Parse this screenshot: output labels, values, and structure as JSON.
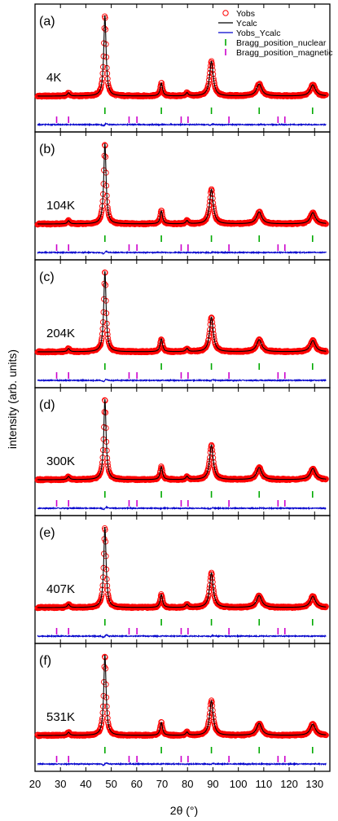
{
  "chart_data": {
    "type": "line",
    "title": "",
    "xlabel": "2θ (°)",
    "ylabel": "intensity (arb. units)",
    "xlim": [
      20,
      136
    ],
    "xticks": [
      20,
      30,
      40,
      50,
      60,
      70,
      80,
      90,
      100,
      110,
      120,
      130
    ],
    "legend": {
      "placement": "top-right",
      "entries": [
        "Yobs",
        "Ycalc",
        "Yobs_Ycalc",
        "Bragg_position_nuclear",
        "Bragg_position_magnetic"
      ]
    },
    "colors": {
      "Yobs": "#ff0000",
      "Ycalc": "#000000",
      "Yobs_Ycalc": "#0000cc",
      "Bragg_position_nuclear": "#00aa00",
      "Bragg_position_magnetic": "#cc00cc"
    },
    "bragg_positions_nuclear": [
      47.5,
      69.7,
      89.4,
      108.2,
      129.2
    ],
    "bragg_positions_magnetic": [
      28.5,
      33.2,
      57.0,
      60.1,
      77.5,
      80.2,
      96.3,
      115.6,
      118.3
    ],
    "panels": [
      {
        "letter": "(a)",
        "temperature": "4K",
        "shows_magnetic": true,
        "peaks": [
          [
            33.2,
            0.04
          ],
          [
            47.5,
            1.0
          ],
          [
            69.7,
            0.16
          ],
          [
            79.8,
            0.04
          ],
          [
            89.4,
            0.43
          ],
          [
            108.2,
            0.15
          ],
          [
            129.3,
            0.14
          ]
        ]
      },
      {
        "letter": "(b)",
        "temperature": "104K",
        "shows_magnetic": true,
        "peaks": [
          [
            33.2,
            0.04
          ],
          [
            47.5,
            1.0
          ],
          [
            69.7,
            0.16
          ],
          [
            79.8,
            0.04
          ],
          [
            89.4,
            0.43
          ],
          [
            108.2,
            0.15
          ],
          [
            129.3,
            0.14
          ]
        ]
      },
      {
        "letter": "(c)",
        "temperature": "204K",
        "shows_magnetic": true,
        "peaks": [
          [
            33.2,
            0.04
          ],
          [
            47.5,
            1.0
          ],
          [
            69.7,
            0.16
          ],
          [
            79.8,
            0.04
          ],
          [
            89.4,
            0.43
          ],
          [
            108.2,
            0.15
          ],
          [
            129.3,
            0.14
          ]
        ]
      },
      {
        "letter": "(d)",
        "temperature": "300K",
        "shows_magnetic": true,
        "peaks": [
          [
            33.2,
            0.04
          ],
          [
            47.5,
            1.0
          ],
          [
            69.7,
            0.16
          ],
          [
            79.8,
            0.04
          ],
          [
            89.4,
            0.43
          ],
          [
            108.2,
            0.15
          ],
          [
            129.3,
            0.14
          ]
        ]
      },
      {
        "letter": "(e)",
        "temperature": "407K",
        "shows_magnetic": true,
        "peaks": [
          [
            33.2,
            0.04
          ],
          [
            47.5,
            1.0
          ],
          [
            69.7,
            0.16
          ],
          [
            79.8,
            0.04
          ],
          [
            89.4,
            0.43
          ],
          [
            108.2,
            0.15
          ],
          [
            129.3,
            0.14
          ]
        ]
      },
      {
        "letter": "(f)",
        "temperature": "531K",
        "shows_magnetic": true,
        "peaks": [
          [
            33.2,
            0.04
          ],
          [
            47.5,
            1.0
          ],
          [
            69.7,
            0.16
          ],
          [
            79.8,
            0.04
          ],
          [
            89.4,
            0.43
          ],
          [
            108.2,
            0.15
          ],
          [
            129.3,
            0.14
          ]
        ]
      }
    ]
  }
}
